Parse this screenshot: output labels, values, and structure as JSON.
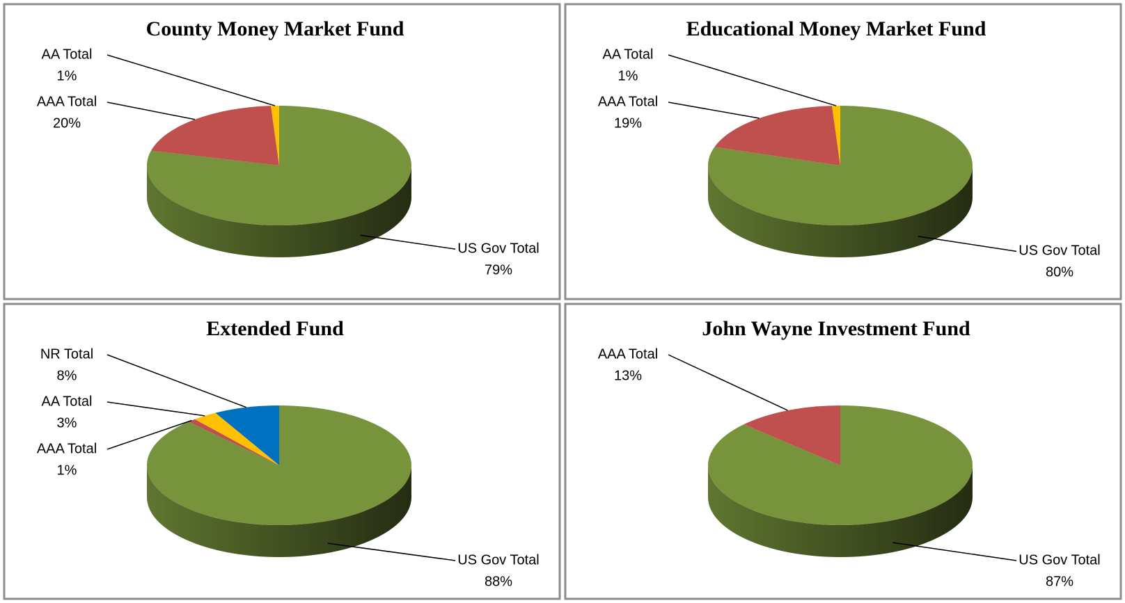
{
  "chart_data": [
    {
      "type": "pie",
      "title": "County Money Market Fund",
      "categories": [
        "US Gov Total",
        "AAA Total",
        "AA Total"
      ],
      "values": [
        79,
        20,
        1
      ],
      "value_labels": [
        "79%",
        "20%",
        "1%"
      ],
      "colors": [
        "#77933c",
        "#c0504d",
        "#ffc000"
      ]
    },
    {
      "type": "pie",
      "title": "Educational Money Market Fund",
      "categories": [
        "US Gov Total",
        "AAA Total",
        "AA Total"
      ],
      "values": [
        80,
        19,
        1
      ],
      "value_labels": [
        "80%",
        "19%",
        "1%"
      ],
      "colors": [
        "#77933c",
        "#c0504d",
        "#ffc000"
      ]
    },
    {
      "type": "pie",
      "title": "Extended Fund",
      "categories": [
        "US Gov Total",
        "AAA Total",
        "AA Total",
        "NR Total"
      ],
      "values": [
        88,
        1,
        3,
        8
      ],
      "value_labels": [
        "88%",
        "1%",
        "3%",
        "8%"
      ],
      "colors": [
        "#77933c",
        "#c0504d",
        "#ffc000",
        "#0070c0"
      ]
    },
    {
      "type": "pie",
      "title": "John Wayne Investment Fund",
      "categories": [
        "US Gov Total",
        "AAA Total"
      ],
      "values": [
        87,
        13
      ],
      "value_labels": [
        "87%",
        "13%"
      ],
      "colors": [
        "#77933c",
        "#c0504d"
      ]
    }
  ]
}
